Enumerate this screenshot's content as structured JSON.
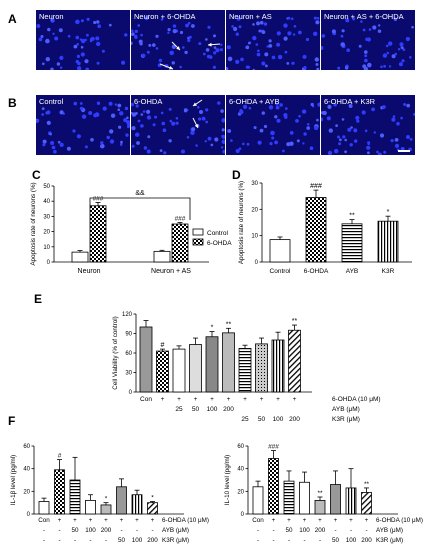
{
  "panels": {
    "A": {
      "label": "A",
      "images": [
        "Neuron",
        "Neuron + 6-OHDA",
        "Neuron + AS",
        "Neuron + AS + 6-OHDA"
      ]
    },
    "B": {
      "label": "B",
      "images": [
        "Control",
        "6-OHDA",
        "6-OHDA + AYB",
        "6-OHDA + K3R"
      ]
    },
    "C": {
      "label": "C"
    },
    "D": {
      "label": "D"
    },
    "E": {
      "label": "E"
    },
    "F": {
      "label": "F"
    }
  },
  "colors": {
    "micro_bg": "#0a0a6e",
    "nuclei": "#2f3bff",
    "bar_gray": "#999999",
    "bar_dark": "#555555"
  },
  "chart_data": [
    {
      "id": "C",
      "type": "bar",
      "ylabel": "Apoptosis rate of neurons (%)",
      "ylim": [
        0,
        50
      ],
      "yticks": [
        "0",
        "10",
        "20",
        "30",
        "40",
        "50"
      ],
      "categories": [
        "Neuron",
        "Neuron + AS"
      ],
      "series": [
        {
          "name": "Control",
          "values": [
            6.5,
            7.0
          ],
          "err": [
            1.0,
            0.7
          ]
        },
        {
          "name": "6-OHDA",
          "values": [
            37,
            25
          ],
          "err": [
            2.2,
            1.0
          ]
        }
      ],
      "annotations": [
        "###",
        "###",
        "&&"
      ],
      "legend": "right"
    },
    {
      "id": "D",
      "type": "bar",
      "ylabel": "Apoptosis rate of neurons (%)",
      "ylim": [
        0,
        30
      ],
      "yticks": [
        "0",
        "10",
        "20",
        "30"
      ],
      "categories": [
        "Control",
        "6-OHDA",
        "AYB",
        "K3R"
      ],
      "values": [
        8.5,
        24.5,
        14.5,
        15.5
      ],
      "err": [
        1.0,
        2.8,
        1.6,
        1.9
      ],
      "annotations": [
        "",
        "###",
        "**",
        "*"
      ]
    },
    {
      "id": "E",
      "type": "bar",
      "ylabel": "Cell Viability (% of control)",
      "ylim": [
        0,
        120
      ],
      "yticks": [
        "0",
        "30",
        "60",
        "90",
        "120"
      ],
      "categories": [
        "Con",
        "6-OHDA",
        "AYB 25",
        "AYB 50",
        "AYB 100",
        "AYB 200",
        "K3R 25",
        "K3R 50",
        "K3R 100",
        "K3R 200"
      ],
      "values": [
        100,
        63,
        66,
        73,
        85,
        91,
        67,
        74,
        80,
        95
      ],
      "err": [
        10,
        3,
        5,
        10,
        8,
        7,
        5,
        9,
        12,
        8
      ],
      "annotations": [
        "",
        "#",
        "",
        "",
        "*",
        "**",
        "",
        "",
        "",
        "**"
      ],
      "condition_rows": [
        {
          "label": "6-OHDA (10 μM)",
          "cells": [
            "",
            "+",
            "+",
            "+",
            "+",
            "+",
            "+",
            "+",
            "+",
            "+"
          ]
        },
        {
          "label": "AYB (μM)",
          "cells": [
            "",
            "",
            "25",
            "50",
            "100",
            "200",
            "",
            "",
            "",
            ""
          ]
        },
        {
          "label": "K3R (μM)",
          "cells": [
            "",
            "",
            "",
            "",
            "",
            "",
            "25",
            "50",
            "100",
            "200"
          ]
        }
      ]
    },
    {
      "id": "F1",
      "type": "bar",
      "ylabel": "IL-1β level (pg/ml)",
      "ylim": [
        0,
        60
      ],
      "yticks": [
        "0",
        "20",
        "40",
        "60"
      ],
      "categories": [
        "Con",
        "6-OHDA",
        "AYB 50",
        "AYB 100",
        "AYB 200",
        "K3R 50",
        "K3R 100",
        "K3R 200"
      ],
      "values": [
        11,
        39,
        30,
        12,
        8,
        24,
        17,
        10
      ],
      "err": [
        3,
        9,
        20,
        5,
        2,
        7,
        4,
        1
      ],
      "annotations": [
        "",
        "#",
        "",
        "",
        "*",
        "",
        "",
        "*"
      ],
      "condition_rows": [
        {
          "label": "6-OHDA (10 μM)",
          "cells": [
            "-",
            "+",
            "+",
            "+",
            "+",
            "+",
            "+",
            "+"
          ]
        },
        {
          "label": "AYB (μM)",
          "cells": [
            "-",
            "-",
            "50",
            "100",
            "200",
            "-",
            "-",
            "-"
          ]
        },
        {
          "label": "K3R (μM)",
          "cells": [
            "-",
            "-",
            "-",
            "-",
            "-",
            "50",
            "100",
            "200"
          ]
        }
      ]
    },
    {
      "id": "F2",
      "type": "bar",
      "ylabel": "IL-10 level (pg/ml)",
      "ylim": [
        0,
        60
      ],
      "yticks": [
        "0",
        "20",
        "40",
        "60"
      ],
      "categories": [
        "Con",
        "6-OHDA",
        "AYB 50",
        "AYB 100",
        "AYB 200",
        "K3R 50",
        "K3R 100",
        "K3R 200"
      ],
      "values": [
        24,
        49,
        29,
        28,
        12,
        26,
        23,
        19
      ],
      "err": [
        5,
        7,
        9,
        9,
        3,
        12,
        17,
        4
      ],
      "annotations": [
        "",
        "###",
        "",
        "",
        "**",
        "",
        "",
        "**"
      ],
      "condition_rows": [
        {
          "label": "6-OHDA (10 μM)",
          "cells": [
            "-",
            "+",
            "+",
            "+",
            "+",
            "+",
            "+",
            "+"
          ]
        },
        {
          "label": "AYB (μM)",
          "cells": [
            "-",
            "-",
            "50",
            "100",
            "200",
            "-",
            "-",
            "-"
          ]
        },
        {
          "label": "K3R (μM)",
          "cells": [
            "-",
            "-",
            "-",
            "-",
            "-",
            "50",
            "100",
            "200"
          ]
        }
      ]
    }
  ]
}
